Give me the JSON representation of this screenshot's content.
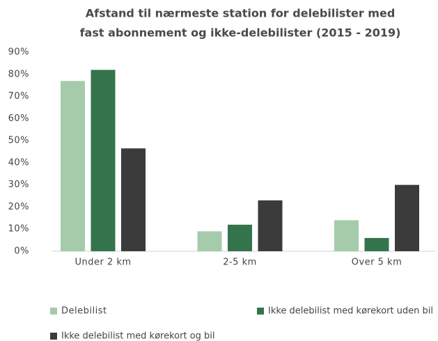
{
  "chart_data": {
    "type": "bar",
    "title": [
      "Afstand til nærmeste station for delebilister med",
      "fast abonnement og ikke-delebilister (2015 - 2019)"
    ],
    "categories": [
      "Under 2 km",
      "2-5 km",
      "Over 5 km"
    ],
    "series": [
      {
        "name": "Delebilist",
        "color": "#a5cbab",
        "values": [
          77,
          9,
          14
        ]
      },
      {
        "name": "Ikke delebilist med kørekort uden bil",
        "color": "#34744c",
        "values": [
          82,
          12,
          6
        ]
      },
      {
        "name": "Ikke delebilist med kørekort og bil",
        "color": "#3b3b3b",
        "values": [
          46.5,
          23,
          30
        ]
      }
    ],
    "ylim": [
      0,
      90
    ],
    "yticks": [
      {
        "value": 0,
        "label": "0%"
      },
      {
        "value": 10,
        "label": "10%"
      },
      {
        "value": 20,
        "label": "20%"
      },
      {
        "value": 30,
        "label": "30%"
      },
      {
        "value": 40,
        "label": "40%"
      },
      {
        "value": 50,
        "label": "50%"
      },
      {
        "value": 60,
        "label": "60%"
      },
      {
        "value": 70,
        "label": "70%"
      },
      {
        "value": 80,
        "label": "80%"
      },
      {
        "value": 90,
        "label": "90%"
      }
    ],
    "grid": false
  }
}
